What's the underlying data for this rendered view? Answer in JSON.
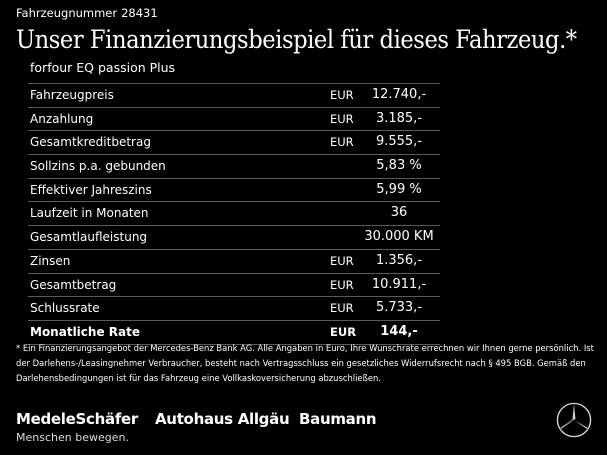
{
  "vehicle_number": {
    "label": "Fahrzeugnummer",
    "value": "28431"
  },
  "headline": "Unser Finanzierungsbeispiel für dieses Fahrzeug.*",
  "model": "forfour EQ passion Plus",
  "rows": [
    {
      "label": "Fahrzeugpreis",
      "currency": "EUR",
      "value": "12.740,-"
    },
    {
      "label": "Anzahlung",
      "currency": "EUR",
      "value": "3.185,-"
    },
    {
      "label": "Gesamtkreditbetrag",
      "currency": "EUR",
      "value": "9.555,-"
    },
    {
      "label": "Sollzins p.a. gebunden",
      "currency": "",
      "value": "5,83 %"
    },
    {
      "label": "Effektiver Jahreszins",
      "currency": "",
      "value": "5,99 %"
    },
    {
      "label": "Laufzeit in Monaten",
      "currency": "",
      "value": "36"
    },
    {
      "label": "Gesamtlaufleistung",
      "currency": "",
      "value": "30.000 KM"
    },
    {
      "label": "Zinsen",
      "currency": "EUR",
      "value": "1.356,-"
    },
    {
      "label": "Gesamtbetrag",
      "currency": "EUR",
      "value": "10.911,-"
    },
    {
      "label": "Schlussrate",
      "currency": "EUR",
      "value": "5.733,-"
    },
    {
      "label": "Monatliche Rate",
      "currency": "EUR",
      "value": "144,-"
    }
  ],
  "footnote": "* Ein Finanzierungsangebot der Mercedes-Benz Bank AG. Alle Angaben in Euro, Ihre Wunschrate errechnen wir Ihnen gerne persönlich. Ist der Darlehens-/Leasingnehmer Verbraucher, besteht nach Vertragsschluss ein gesetzliches Widerrufsrecht nach § 495 BGB. Gemäß den Darlehensbedingungen ist für das Fahrzeug eine Vollkaskoversicherung abzuschließen.",
  "brands": [
    "MedeleSchäfer",
    "Autohaus Allgäu",
    "Baumann"
  ],
  "slogan": "Menschen bewegen.",
  "logo_icon": "mercedes-star-icon"
}
